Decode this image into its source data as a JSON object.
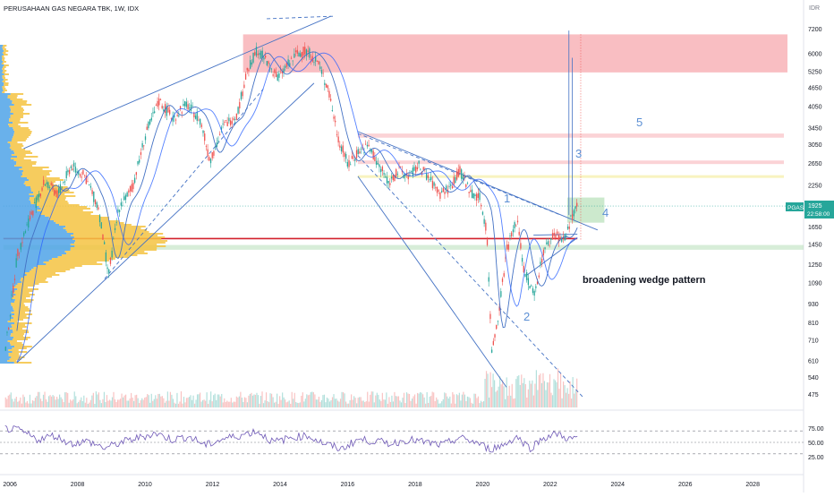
{
  "header": {
    "symbol_line": "PERUSAHAAN GAS NEGARA TBK, 1W, IDX"
  },
  "colors": {
    "up": "#26a69a",
    "down": "#ef5350",
    "line_blue": "#4472c4",
    "annotation_blue": "#5b8fd4",
    "support_red": "#d3212d",
    "zone_red": "#f7a8ae",
    "zone_green": "#b7dfb8",
    "zone_yellow": "#f6f0b0",
    "rsi_line": "#6e58b6",
    "vp_blue": "#4fa3e8",
    "vp_yellow": "#f5c342",
    "badge": "#26a69a"
  },
  "price_axis": {
    "currency": "IDR",
    "ticks": [
      "7200",
      "6000",
      "5250",
      "4650",
      "4050",
      "3450",
      "3050",
      "2650",
      "2250",
      "1650",
      "1450",
      "1250",
      "1090",
      "930",
      "810",
      "710",
      "610",
      "540",
      "475"
    ],
    "scale": "log"
  },
  "price_badge": {
    "symbol": "PGAS",
    "price": "1925",
    "countdown": "22:58:00"
  },
  "time_axis": {
    "ticks": [
      "2006",
      "2008",
      "2010",
      "2012",
      "2014",
      "2016",
      "2018",
      "2020",
      "2022",
      "2024",
      "2026",
      "2028"
    ]
  },
  "rsi_axis": {
    "ticks": [
      "75.00",
      "50.00",
      "25.00"
    ]
  },
  "annotations": {
    "pattern_label": "broadening wedge pattern",
    "labels": [
      "1",
      "2",
      "3",
      "4",
      "5"
    ]
  },
  "chart_data": {
    "type": "line",
    "title": "PERUSAHAAN GAS NEGARA TBK, 1W, IDX",
    "xlabel": "",
    "ylabel": "IDR",
    "x_range": [
      2005.7,
      2029.5
    ],
    "y_range": [
      430,
      7800
    ],
    "y_scale": "log",
    "last_price": 1925,
    "price": {
      "x": [
        2005.8,
        2006.2,
        2006.6,
        2007.0,
        2007.4,
        2007.8,
        2008.2,
        2008.6,
        2008.9,
        2009.2,
        2009.6,
        2010.0,
        2010.4,
        2010.8,
        2011.2,
        2011.6,
        2011.9,
        2012.3,
        2012.7,
        2013.0,
        2013.3,
        2013.6,
        2013.9,
        2014.2,
        2014.5,
        2014.8,
        2015.1,
        2015.4,
        2015.7,
        2016.0,
        2016.3,
        2016.6,
        2016.9,
        2017.2,
        2017.5,
        2017.8,
        2018.1,
        2018.4,
        2018.7,
        2019.0,
        2019.3,
        2019.6,
        2019.9,
        2020.1,
        2020.25,
        2020.4,
        2020.7,
        2021.0,
        2021.2,
        2021.5,
        2021.8,
        2022.1,
        2022.4,
        2022.6,
        2022.8
      ],
      "y": [
        600,
        1350,
        1800,
        2300,
        2100,
        2600,
        2400,
        1900,
        1150,
        1900,
        2200,
        3300,
        4200,
        3700,
        4100,
        3700,
        2700,
        3500,
        3800,
        5200,
        6200,
        5600,
        5000,
        5500,
        6000,
        6100,
        5600,
        4600,
        3200,
        2600,
        2900,
        3000,
        2600,
        2300,
        2500,
        2400,
        2600,
        2350,
        2100,
        2200,
        2500,
        2150,
        2050,
        1600,
        650,
        800,
        1400,
        1750,
        1200,
        1000,
        1400,
        1550,
        1500,
        1750,
        1925
      ]
    },
    "volume_profile_peak_price": 1500,
    "zones": [
      {
        "kind": "resistance",
        "low": 5200,
        "high": 6900
      },
      {
        "kind": "resistance",
        "low": 3200,
        "high": 3300
      },
      {
        "kind": "resistance",
        "low": 2630,
        "high": 2700
      },
      {
        "kind": "resistance",
        "low": 2380,
        "high": 2420
      },
      {
        "kind": "target",
        "low": 1700,
        "high": 2050
      },
      {
        "kind": "support",
        "low": 1390,
        "high": 1440
      }
    ],
    "support_line": 1510,
    "rsi": {
      "levels": [
        70,
        50,
        30
      ],
      "x": [
        2005.8,
        2006.3,
        2006.8,
        2007.3,
        2007.8,
        2008.3,
        2008.8,
        2009.3,
        2009.8,
        2010.3,
        2010.8,
        2011.3,
        2011.8,
        2012.3,
        2012.8,
        2013.3,
        2013.8,
        2014.3,
        2014.8,
        2015.3,
        2015.8,
        2016.3,
        2016.8,
        2017.3,
        2017.8,
        2018.3,
        2018.8,
        2019.3,
        2019.8,
        2020.2,
        2020.6,
        2021.0,
        2021.4,
        2021.8,
        2022.2,
        2022.6,
        2022.8
      ],
      "y": [
        75,
        70,
        55,
        62,
        48,
        52,
        40,
        50,
        58,
        66,
        55,
        60,
        45,
        56,
        62,
        70,
        50,
        58,
        62,
        48,
        38,
        55,
        52,
        48,
        55,
        50,
        45,
        58,
        50,
        38,
        45,
        60,
        40,
        58,
        65,
        55,
        60
      ]
    }
  }
}
